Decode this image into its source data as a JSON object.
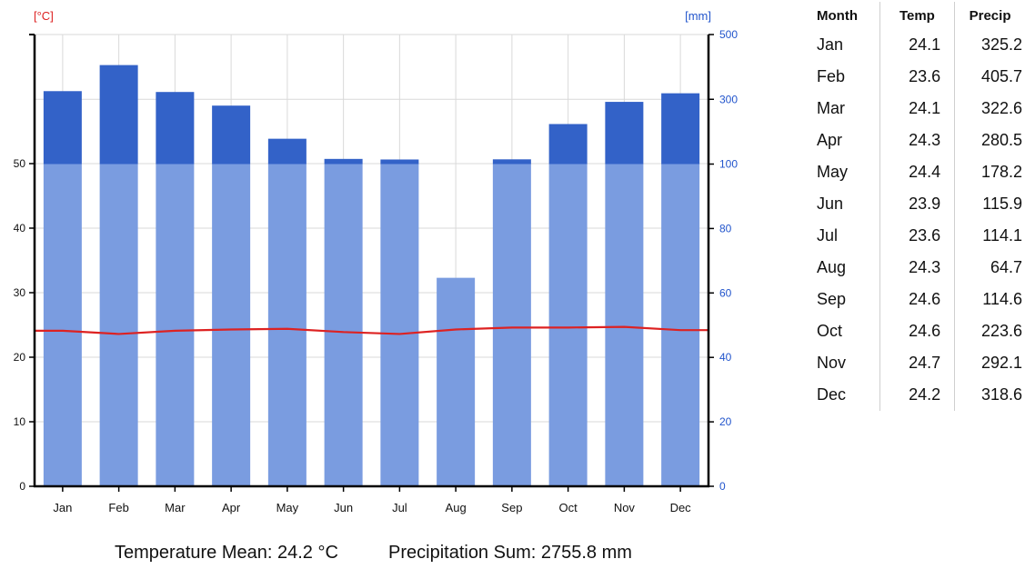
{
  "chart_data": {
    "type": "bar",
    "categories": [
      "Jan",
      "Feb",
      "Mar",
      "Apr",
      "May",
      "Jun",
      "Jul",
      "Aug",
      "Sep",
      "Oct",
      "Nov",
      "Dec"
    ],
    "series": [
      {
        "name": "Precip",
        "axis": "right",
        "kind": "bar",
        "values": [
          325.2,
          405.7,
          322.6,
          280.5,
          178.2,
          115.9,
          114.1,
          64.7,
          114.6,
          223.6,
          292.1,
          318.6
        ]
      },
      {
        "name": "Temp",
        "axis": "left",
        "kind": "line",
        "values": [
          24.1,
          23.6,
          24.1,
          24.3,
          24.4,
          23.9,
          23.6,
          24.3,
          24.6,
          24.6,
          24.7,
          24.2
        ]
      }
    ],
    "left_axis": {
      "unit": "[°C]",
      "ticks": [
        "0",
        "10",
        "20",
        "30",
        "40",
        "50"
      ],
      "ylim": [
        0,
        70
      ]
    },
    "right_axis": {
      "unit": "[mm]",
      "ticks": [
        "0",
        "20",
        "40",
        "60",
        "80",
        "100",
        "300",
        "500"
      ],
      "scale": "linear 0-100, compressed 100-500"
    },
    "grid": true,
    "colors": {
      "bar_light": "#7a9ce0",
      "bar_dark": "#3362c8",
      "temp_line": "#dd2222",
      "left_axis_label": "#dd2222",
      "right_axis_label": "#2255cc"
    }
  },
  "summary": {
    "temperature": "Temperature Mean: 24.2 °C",
    "precipitation": "Precipitation Sum: 2755.8 mm"
  },
  "table": {
    "headers": {
      "month": "Month",
      "temp": "Temp",
      "precip": "Precip"
    },
    "rows": [
      {
        "month": "Jan",
        "temp": "24.1",
        "precip": "325.2"
      },
      {
        "month": "Feb",
        "temp": "23.6",
        "precip": "405.7"
      },
      {
        "month": "Mar",
        "temp": "24.1",
        "precip": "322.6"
      },
      {
        "month": "Apr",
        "temp": "24.3",
        "precip": "280.5"
      },
      {
        "month": "May",
        "temp": "24.4",
        "precip": "178.2"
      },
      {
        "month": "Jun",
        "temp": "23.9",
        "precip": "115.9"
      },
      {
        "month": "Jul",
        "temp": "23.6",
        "precip": "114.1"
      },
      {
        "month": "Aug",
        "temp": "24.3",
        "precip": "64.7"
      },
      {
        "month": "Sep",
        "temp": "24.6",
        "precip": "114.6"
      },
      {
        "month": "Oct",
        "temp": "24.6",
        "precip": "223.6"
      },
      {
        "month": "Nov",
        "temp": "24.7",
        "precip": "292.1"
      },
      {
        "month": "Dec",
        "temp": "24.2",
        "precip": "318.6"
      }
    ]
  }
}
